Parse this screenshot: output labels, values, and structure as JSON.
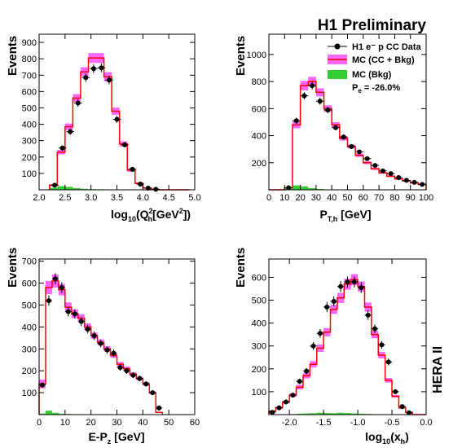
{
  "header": {
    "title": "H1 Preliminary",
    "side_label": "HERA II"
  },
  "legend": {
    "data": "H1 e⁻ p CC Data",
    "mc_total": "MC (CC + Bkg)",
    "mc_bkg": "MC (Bkg)",
    "polarisation": "P",
    "polarisation_sub": "e",
    "polarisation_value": " = -26.0%",
    "colors": {
      "data": "#000000",
      "mc_line": "#ff0000",
      "mc_band": "#ff66ff",
      "bkg": "#33cc33"
    }
  },
  "chart_data": [
    {
      "type": "bar",
      "ylabel": "Events",
      "xlabel_parts": [
        "log",
        "10",
        "(Q",
        "2",
        "h",
        "[GeV",
        "2",
        "])"
      ],
      "xlim": [
        2.0,
        5.0
      ],
      "ylim": [
        0,
        950
      ],
      "xticks": [
        2.0,
        2.5,
        3.0,
        3.5,
        4.0,
        4.5,
        5.0
      ],
      "xtick_labels": [
        "2.0",
        "2.5",
        "3.0",
        "3.5",
        "4.0",
        "4.5",
        "5.0"
      ],
      "yticks": [
        100,
        200,
        300,
        400,
        500,
        600,
        700,
        800,
        900
      ],
      "ytick_labels": [
        "100",
        "200",
        "300",
        "400",
        "500",
        "600",
        "700",
        "800",
        "900"
      ],
      "bin_edges": [
        2.2,
        2.35,
        2.5,
        2.65,
        2.8,
        2.95,
        3.1,
        3.25,
        3.4,
        3.55,
        3.7,
        3.85,
        4.0,
        4.15,
        4.3,
        4.45,
        4.6,
        4.75,
        4.9
      ],
      "mc_total": [
        28,
        230,
        385,
        560,
        720,
        805,
        805,
        690,
        480,
        280,
        120,
        40,
        12,
        4,
        0,
        0,
        0,
        0
      ],
      "mc_band": [
        6,
        14,
        20,
        24,
        28,
        30,
        30,
        28,
        22,
        16,
        10,
        5,
        2,
        1,
        0,
        0,
        0,
        0
      ],
      "mc_bkg": [
        12,
        22,
        18,
        10,
        6,
        4,
        3,
        2,
        1,
        0,
        0,
        0,
        0,
        0,
        0,
        0,
        0,
        0
      ],
      "data_points": [
        {
          "x": 2.3,
          "y": 28,
          "err": 6
        },
        {
          "x": 2.45,
          "y": 255,
          "err": 16
        },
        {
          "x": 2.6,
          "y": 355,
          "err": 19
        },
        {
          "x": 2.75,
          "y": 530,
          "err": 23
        },
        {
          "x": 2.9,
          "y": 685,
          "err": 26
        },
        {
          "x": 3.05,
          "y": 740,
          "err": 27
        },
        {
          "x": 3.2,
          "y": 745,
          "err": 27
        },
        {
          "x": 3.35,
          "y": 670,
          "err": 26
        },
        {
          "x": 3.5,
          "y": 430,
          "err": 21
        },
        {
          "x": 3.65,
          "y": 275,
          "err": 17
        },
        {
          "x": 3.8,
          "y": 125,
          "err": 11
        },
        {
          "x": 3.95,
          "y": 35,
          "err": 6
        },
        {
          "x": 4.1,
          "y": 10,
          "err": 3
        },
        {
          "x": 4.25,
          "y": 3,
          "err": 2
        }
      ]
    },
    {
      "type": "bar",
      "ylabel": "Events",
      "xlabel_parts": [
        "P",
        "T,h",
        " [GeV]"
      ],
      "xlim": [
        0,
        100
      ],
      "ylim": [
        0,
        1150
      ],
      "xticks": [
        0,
        10,
        20,
        30,
        40,
        50,
        60,
        70,
        80,
        90,
        100
      ],
      "xtick_labels": [
        "0",
        "10",
        "20",
        "30",
        "40",
        "50",
        "60",
        "70",
        "80",
        "90",
        "100"
      ],
      "yticks": [
        200,
        400,
        600,
        800,
        1000
      ],
      "ytick_labels": [
        "200",
        "400",
        "600",
        "800",
        "1000"
      ],
      "bin_edges": [
        0,
        5,
        10,
        15,
        20,
        25,
        30,
        35,
        40,
        45,
        50,
        55,
        60,
        65,
        70,
        75,
        80,
        85,
        90,
        95,
        100
      ],
      "mc_total": [
        0,
        0,
        15,
        480,
        770,
        800,
        720,
        600,
        480,
        380,
        320,
        255,
        200,
        155,
        125,
        100,
        80,
        65,
        50,
        40
      ],
      "mc_band": [
        0,
        0,
        3,
        25,
        35,
        35,
        30,
        25,
        20,
        16,
        14,
        12,
        10,
        8,
        7,
        6,
        5,
        4,
        4,
        3
      ],
      "mc_bkg": [
        0,
        0,
        15,
        32,
        25,
        12,
        6,
        3,
        2,
        1,
        1,
        0,
        0,
        0,
        0,
        0,
        0,
        0,
        0,
        0
      ],
      "data_points": [
        {
          "x": 12.5,
          "y": 15,
          "err": 4
        },
        {
          "x": 17.5,
          "y": 510,
          "err": 23
        },
        {
          "x": 22.5,
          "y": 695,
          "err": 26
        },
        {
          "x": 27.5,
          "y": 770,
          "err": 28
        },
        {
          "x": 32.5,
          "y": 655,
          "err": 26
        },
        {
          "x": 37.5,
          "y": 590,
          "err": 24
        },
        {
          "x": 42.5,
          "y": 460,
          "err": 21
        },
        {
          "x": 47.5,
          "y": 390,
          "err": 20
        },
        {
          "x": 52.5,
          "y": 320,
          "err": 18
        },
        {
          "x": 57.5,
          "y": 280,
          "err": 17
        },
        {
          "x": 62.5,
          "y": 230,
          "err": 15
        },
        {
          "x": 67.5,
          "y": 180,
          "err": 13
        },
        {
          "x": 72.5,
          "y": 140,
          "err": 12
        },
        {
          "x": 77.5,
          "y": 120,
          "err": 11
        },
        {
          "x": 82.5,
          "y": 90,
          "err": 10
        },
        {
          "x": 87.5,
          "y": 70,
          "err": 8
        },
        {
          "x": 92.5,
          "y": 55,
          "err": 7
        },
        {
          "x": 97.5,
          "y": 40,
          "err": 6
        }
      ]
    },
    {
      "type": "bar",
      "ylabel": "Events",
      "xlabel_parts": [
        "E-P",
        "z",
        " [GeV]"
      ],
      "xlim": [
        0,
        60
      ],
      "ylim": [
        0,
        710
      ],
      "xticks": [
        0,
        10,
        20,
        30,
        40,
        50,
        60
      ],
      "xtick_labels": [
        "0",
        "10",
        "20",
        "30",
        "40",
        "50",
        "60"
      ],
      "yticks": [
        100,
        200,
        300,
        400,
        500,
        600,
        700
      ],
      "ytick_labels": [
        "100",
        "200",
        "300",
        "400",
        "500",
        "600",
        "700"
      ],
      "bin_edges": [
        0,
        2.5,
        5,
        7.5,
        10,
        12.5,
        15,
        17.5,
        20,
        22.5,
        25,
        27.5,
        30,
        32.5,
        35,
        37.5,
        40,
        42.5,
        45,
        47.5
      ],
      "mc_total": [
        140,
        580,
        610,
        570,
        490,
        460,
        440,
        400,
        360,
        330,
        300,
        270,
        230,
        210,
        185,
        165,
        140,
        100,
        10
      ],
      "mc_band": [
        20,
        30,
        30,
        26,
        22,
        20,
        18,
        16,
        14,
        13,
        12,
        11,
        10,
        9,
        8,
        8,
        7,
        6,
        2
      ],
      "mc_bkg": [
        5,
        18,
        8,
        4,
        3,
        2,
        2,
        1,
        1,
        1,
        1,
        1,
        1,
        1,
        1,
        1,
        1,
        1,
        0
      ],
      "data_points": [
        {
          "x": 1.25,
          "y": 135,
          "err": 12
        },
        {
          "x": 3.75,
          "y": 520,
          "err": 23
        },
        {
          "x": 6.25,
          "y": 620,
          "err": 25
        },
        {
          "x": 8.75,
          "y": 580,
          "err": 24
        },
        {
          "x": 11.25,
          "y": 470,
          "err": 22
        },
        {
          "x": 13.75,
          "y": 460,
          "err": 21
        },
        {
          "x": 16.25,
          "y": 425,
          "err": 21
        },
        {
          "x": 18.75,
          "y": 390,
          "err": 20
        },
        {
          "x": 21.25,
          "y": 360,
          "err": 19
        },
        {
          "x": 23.75,
          "y": 325,
          "err": 18
        },
        {
          "x": 26.25,
          "y": 295,
          "err": 17
        },
        {
          "x": 28.75,
          "y": 280,
          "err": 17
        },
        {
          "x": 31.25,
          "y": 215,
          "err": 15
        },
        {
          "x": 33.75,
          "y": 200,
          "err": 14
        },
        {
          "x": 36.25,
          "y": 180,
          "err": 13
        },
        {
          "x": 38.75,
          "y": 165,
          "err": 13
        },
        {
          "x": 41.25,
          "y": 140,
          "err": 12
        },
        {
          "x": 43.75,
          "y": 100,
          "err": 10
        },
        {
          "x": 46.25,
          "y": 30,
          "err": 6
        }
      ]
    },
    {
      "type": "bar",
      "ylabel": "Events",
      "xlabel_parts": [
        "log",
        "10",
        "(x",
        "h",
        ")"
      ],
      "xlim": [
        -2.3,
        0
      ],
      "ylim": [
        0,
        680
      ],
      "xticks": [
        -2.0,
        -1.5,
        -1.0,
        -0.5,
        0.0
      ],
      "xtick_labels": [
        "-2.0",
        "-1.5",
        "-1.0",
        "-0.5",
        "0.0"
      ],
      "yticks": [
        100,
        200,
        300,
        400,
        500,
        600
      ],
      "ytick_labels": [
        "100",
        "200",
        "300",
        "400",
        "500",
        "600"
      ],
      "bin_edges": [
        -2.3,
        -2.2,
        -2.1,
        -2.0,
        -1.9,
        -1.8,
        -1.7,
        -1.6,
        -1.5,
        -1.4,
        -1.3,
        -1.2,
        -1.1,
        -1.0,
        -0.9,
        -0.8,
        -0.7,
        -0.6,
        -0.5,
        -0.4,
        -0.3,
        -0.2,
        -0.1,
        0.0
      ],
      "mc_total": [
        15,
        30,
        55,
        85,
        120,
        170,
        220,
        290,
        360,
        460,
        510,
        570,
        590,
        560,
        470,
        350,
        260,
        150,
        80,
        30,
        10,
        0,
        0
      ],
      "mc_band": [
        3,
        5,
        6,
        8,
        10,
        12,
        14,
        16,
        18,
        20,
        22,
        24,
        24,
        22,
        20,
        16,
        14,
        10,
        6,
        3,
        2,
        0,
        0
      ],
      "mc_bkg": [
        0,
        0,
        0,
        2,
        4,
        5,
        6,
        8,
        7,
        6,
        8,
        7,
        5,
        4,
        3,
        2,
        1,
        1,
        1,
        0,
        0,
        0,
        0
      ],
      "data_points": [
        {
          "x": -2.25,
          "y": 10,
          "err": 3
        },
        {
          "x": -2.15,
          "y": 30,
          "err": 5
        },
        {
          "x": -2.05,
          "y": 55,
          "err": 7
        },
        {
          "x": -1.95,
          "y": 85,
          "err": 9
        },
        {
          "x": -1.85,
          "y": 145,
          "err": 12
        },
        {
          "x": -1.75,
          "y": 190,
          "err": 14
        },
        {
          "x": -1.65,
          "y": 300,
          "err": 17
        },
        {
          "x": -1.55,
          "y": 355,
          "err": 19
        },
        {
          "x": -1.45,
          "y": 470,
          "err": 22
        },
        {
          "x": -1.35,
          "y": 495,
          "err": 22
        },
        {
          "x": -1.25,
          "y": 560,
          "err": 24
        },
        {
          "x": -1.15,
          "y": 580,
          "err": 24
        },
        {
          "x": -1.05,
          "y": 580,
          "err": 24
        },
        {
          "x": -0.95,
          "y": 555,
          "err": 24
        },
        {
          "x": -0.85,
          "y": 435,
          "err": 21
        },
        {
          "x": -0.75,
          "y": 375,
          "err": 19
        },
        {
          "x": -0.65,
          "y": 305,
          "err": 17
        },
        {
          "x": -0.55,
          "y": 230,
          "err": 15
        },
        {
          "x": -0.45,
          "y": 100,
          "err": 10
        },
        {
          "x": -0.35,
          "y": 35,
          "err": 6
        },
        {
          "x": -0.25,
          "y": 8,
          "err": 3
        }
      ]
    }
  ]
}
